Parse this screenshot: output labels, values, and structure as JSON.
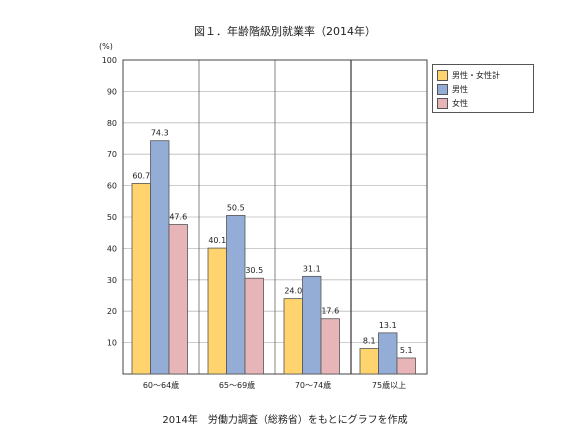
{
  "header": {
    "title": "図１．年齢階級別就業率（2014年）"
  },
  "footer": {
    "caption": "2014年　労働力調査（総務省）をもとにグラフを作成"
  },
  "colors": {
    "total": "#FFD36E",
    "male": "#94ADD6",
    "female": "#E7B5B8",
    "border": "#555555"
  },
  "chart_data": {
    "type": "bar",
    "title": "図１．年齢階級別就業率（2014年）",
    "ylabel": "(%)",
    "xlabel": "",
    "ylim": [
      0,
      100
    ],
    "yticks": [
      10,
      20,
      30,
      40,
      50,
      60,
      70,
      80,
      90,
      100
    ],
    "grid": true,
    "legend_position": "top-right",
    "categories": [
      "60～64歳",
      "65～69歳",
      "70～74歳",
      "75歳以上"
    ],
    "series": [
      {
        "name": "男性・女性計",
        "values": [
          60.7,
          40.1,
          24.0,
          8.1
        ],
        "labels": [
          "60.7",
          "40.1",
          "24.0",
          "8.1"
        ]
      },
      {
        "name": "男性",
        "values": [
          74.3,
          50.5,
          31.1,
          13.1
        ],
        "labels": [
          "74.3",
          "50.5",
          "31.1",
          "13.1"
        ]
      },
      {
        "name": "女性",
        "values": [
          47.6,
          30.5,
          17.6,
          5.1
        ],
        "labels": [
          "47.6",
          "30.5",
          "17.6",
          "5.1"
        ]
      }
    ]
  }
}
